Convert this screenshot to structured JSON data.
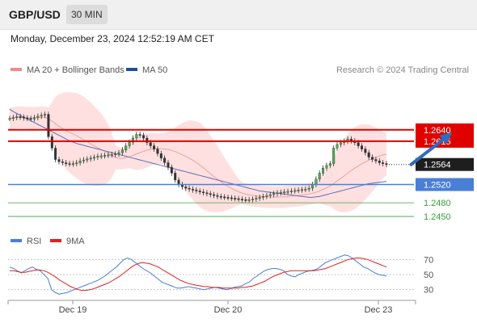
{
  "header": {
    "symbol": "GBP/USD",
    "timeframe": "30 MIN",
    "datetime": "Monday, December 23, 2024 12:52:19 AM CET"
  },
  "legend": {
    "items": [
      {
        "label": "MA 20 + Bollinger Bands",
        "color": "#f28a8a"
      },
      {
        "label": "MA 50",
        "color": "#1f4e9c"
      }
    ],
    "copyright": "Research © 2024 Trading Central"
  },
  "colors": {
    "up": "#4caf50",
    "down": "#333333",
    "resistance": "#e00000",
    "support_blue": "#4a7fd6",
    "support_green": "#3aa03a",
    "bollinger_fill": "#ffd6d6",
    "ma50": "#5a70b8",
    "ma20": "#f0a0a0",
    "arrow": "#2e6cc0",
    "rsi": "#4a7fd6",
    "rsi_ma": "#e02020"
  },
  "chart_data": [
    {
      "type": "candlestick",
      "title": "GBP/USD",
      "x_ticks": [
        "Dec 19",
        "Dec 20",
        "Dec 23"
      ],
      "ylim": [
        1.242,
        1.273
      ],
      "levels": [
        {
          "value": 1.264,
          "label": "1.2640",
          "kind": "resistance"
        },
        {
          "value": 1.2615,
          "label": "1.2615",
          "kind": "resistance"
        },
        {
          "value": 1.2564,
          "label": "1.2564",
          "kind": "last"
        },
        {
          "value": 1.252,
          "label": "1.2520",
          "kind": "support-blue"
        },
        {
          "value": 1.248,
          "label": "1.2480",
          "kind": "support-green"
        },
        {
          "value": 1.245,
          "label": "1.2450",
          "kind": "support-green"
        }
      ],
      "forecast_arrow": {
        "from": [
          114,
          1.2564
        ],
        "to": [
          125,
          1.263
        ]
      },
      "close": [
        1.2665,
        1.2667,
        1.2669,
        1.2668,
        1.2666,
        1.2665,
        1.2664,
        1.2667,
        1.267,
        1.2672,
        1.2674,
        1.2625,
        1.26,
        1.2575,
        1.257,
        1.2568,
        1.2566,
        1.2565,
        1.2566,
        1.2568,
        1.2572,
        1.2574,
        1.2576,
        1.2578,
        1.258,
        1.2582,
        1.2583,
        1.2584,
        1.2585,
        1.2586,
        1.2587,
        1.259,
        1.2596,
        1.2605,
        1.2613,
        1.2622,
        1.263,
        1.2628,
        1.2622,
        1.2612,
        1.2605,
        1.2598,
        1.2588,
        1.2578,
        1.2568,
        1.2558,
        1.2545,
        1.253,
        1.252,
        1.2515,
        1.2512,
        1.251,
        1.2508,
        1.2506,
        1.2504,
        1.2502,
        1.25,
        1.2498,
        1.2496,
        1.2494,
        1.2493,
        1.2492,
        1.2491,
        1.249,
        1.2489,
        1.2488,
        1.2487,
        1.2486,
        1.2487,
        1.2488,
        1.249,
        1.2492,
        1.2494,
        1.2496,
        1.2498,
        1.25,
        1.2502,
        1.2503,
        1.2504,
        1.2505,
        1.2506,
        1.2507,
        1.2508,
        1.2509,
        1.251,
        1.2512,
        1.252,
        1.2532,
        1.2545,
        1.2556,
        1.2562,
        1.2566,
        1.26,
        1.2608,
        1.2612,
        1.2615,
        1.262,
        1.2616,
        1.2612,
        1.2605,
        1.2598,
        1.259,
        1.258,
        1.2575,
        1.2572,
        1.2568,
        1.2566,
        1.2564
      ],
      "ma50": [
        1.2685,
        1.268,
        1.2676,
        1.2672,
        1.2668,
        1.2664,
        1.266,
        1.2656,
        1.2652,
        1.2648,
        1.2644,
        1.264,
        1.2636,
        1.2632,
        1.2628,
        1.2624,
        1.262,
        1.2616,
        1.2613,
        1.261,
        1.2608,
        1.2606,
        1.2604,
        1.2602,
        1.26,
        1.2598,
        1.2596,
        1.2594,
        1.2592,
        1.259,
        1.2588,
        1.2586,
        1.2584,
        1.2582,
        1.258,
        1.2578,
        1.2576,
        1.2574,
        1.2572,
        1.257,
        1.2568,
        1.2566,
        1.2564,
        1.2562,
        1.256,
        1.2558,
        1.2556,
        1.2554,
        1.2552,
        1.255,
        1.2548,
        1.2546,
        1.2544,
        1.2542,
        1.254,
        1.2538,
        1.2536,
        1.2534,
        1.2532,
        1.253,
        1.2528,
        1.2526,
        1.2524,
        1.2522,
        1.252,
        1.2518,
        1.2516,
        1.2514,
        1.2512,
        1.251,
        1.2508,
        1.2506,
        1.2505,
        1.2504,
        1.2503,
        1.2502,
        1.2501,
        1.25,
        1.2499,
        1.2498,
        1.2497,
        1.2496,
        1.2495,
        1.2494,
        1.2493,
        1.2492,
        1.2492,
        1.2493,
        1.2494,
        1.2496,
        1.2498,
        1.25,
        1.2502,
        1.2504,
        1.2506,
        1.2508,
        1.251,
        1.2512,
        1.2514,
        1.2516,
        1.2518,
        1.252,
        1.2522,
        1.2523,
        1.2524,
        1.2525,
        1.2526,
        1.2527
      ]
    },
    {
      "type": "line",
      "title": "RSI",
      "series": [
        {
          "name": "RSI"
        },
        {
          "name": "9MA"
        }
      ],
      "y_ticks": [
        70,
        50,
        30
      ],
      "ylim": [
        20,
        80
      ],
      "rsi": [
        60,
        58,
        55,
        52,
        55,
        58,
        60,
        57,
        55,
        50,
        45,
        30,
        26,
        24,
        25,
        26,
        28,
        30,
        32,
        34,
        36,
        38,
        40,
        42,
        45,
        48,
        52,
        56,
        60,
        65,
        70,
        72,
        70,
        66,
        62,
        58,
        55,
        52,
        48,
        44,
        40,
        38,
        36,
        34,
        32,
        32,
        33,
        34,
        33,
        32,
        31,
        30,
        31,
        32,
        33,
        32,
        31,
        30,
        31,
        33,
        34,
        35,
        38,
        40,
        45,
        48,
        52,
        55,
        57,
        58,
        58,
        57,
        55,
        50,
        48,
        47,
        50,
        52,
        54,
        55,
        56,
        58,
        62,
        66,
        68,
        70,
        72,
        74,
        76,
        75,
        72,
        68,
        64,
        60,
        58,
        55,
        52,
        50,
        49,
        48
      ],
      "ma9": [
        55,
        55,
        54,
        53,
        53,
        54,
        55,
        56,
        56,
        55,
        53,
        50,
        47,
        43,
        40,
        37,
        34,
        32,
        30,
        29,
        29,
        30,
        31,
        33,
        35,
        37,
        39,
        42,
        45,
        48,
        52,
        56,
        60,
        63,
        65,
        66,
        65,
        64,
        62,
        60,
        57,
        54,
        51,
        48,
        45,
        42,
        40,
        38,
        37,
        36,
        35,
        34,
        34,
        33,
        33,
        33,
        32,
        32,
        32,
        32,
        32,
        33,
        33,
        34,
        35,
        37,
        39,
        41,
        44,
        47,
        49,
        51,
        53,
        54,
        55,
        55,
        55,
        55,
        55,
        55,
        55,
        56,
        57,
        58,
        60,
        62,
        64,
        66,
        68,
        70,
        71,
        72,
        72,
        71,
        70,
        68,
        66,
        64,
        62,
        60
      ]
    }
  ]
}
